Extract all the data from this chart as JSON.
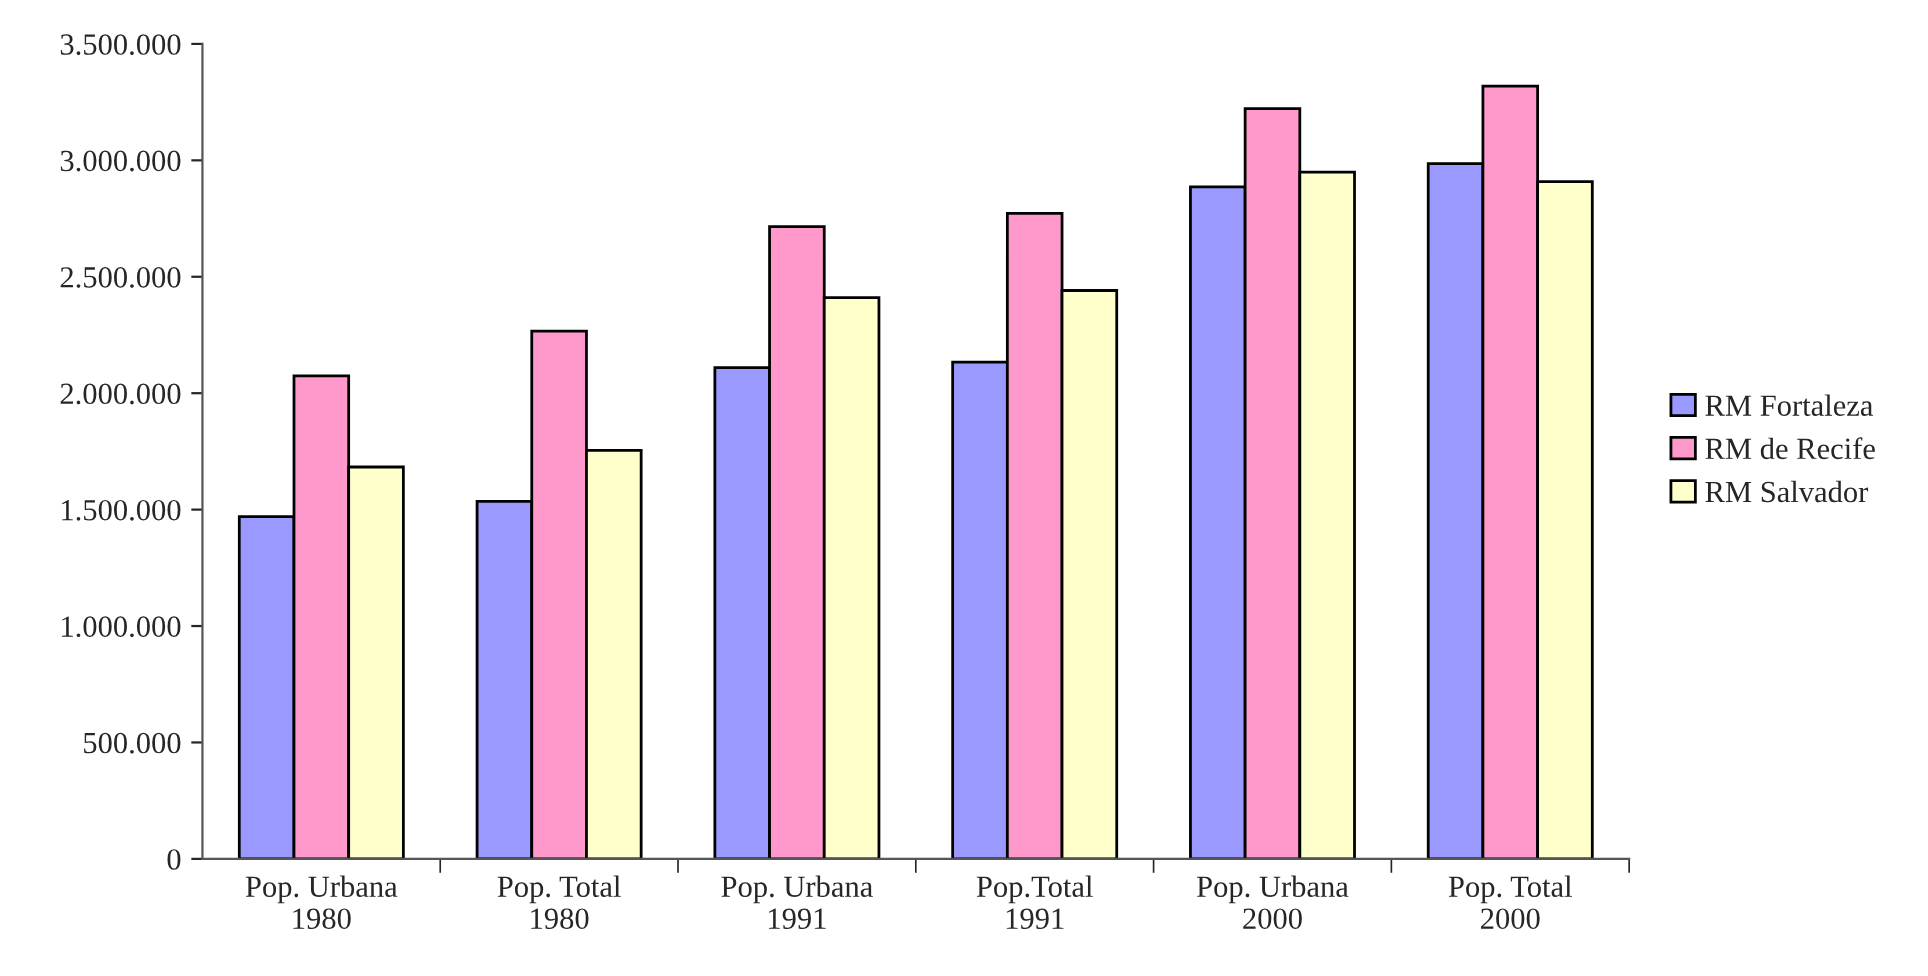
{
  "chart_data": {
    "type": "bar",
    "categories": [
      "Pop. Urbana\n1980",
      "Pop. Total\n1980",
      "Pop. Urbana\n1991",
      "Pop.Total\n1991",
      "Pop. Urbana\n2000",
      "Pop. Total\n2000"
    ],
    "series": [
      {
        "name": "RM Fortaleza",
        "color": "#9999ff",
        "values": [
          1470000,
          1535000,
          2110000,
          2133000,
          2886000,
          2986000
        ]
      },
      {
        "name": "RM de Recife",
        "color": "#ff99cc",
        "values": [
          2074000,
          2267000,
          2715000,
          2772000,
          3222000,
          3319000
        ]
      },
      {
        "name": "RM Salvador",
        "color": "#ffffcc",
        "values": [
          1683000,
          1754000,
          2410000,
          2441000,
          2949000,
          2909000
        ]
      }
    ],
    "ylim": [
      0,
      3500000
    ],
    "yticks": [
      {
        "value": 0,
        "label": "0"
      },
      {
        "value": 500000,
        "label": "500.000"
      },
      {
        "value": 1000000,
        "label": "1.000.000"
      },
      {
        "value": 1500000,
        "label": "1.500.000"
      },
      {
        "value": 2000000,
        "label": "2.000.000"
      },
      {
        "value": 2500000,
        "label": "2.500.000"
      },
      {
        "value": 3000000,
        "label": "3.000.000"
      },
      {
        "value": 3500000,
        "label": "3.500.000"
      }
    ],
    "grid": false,
    "legend": "right"
  }
}
